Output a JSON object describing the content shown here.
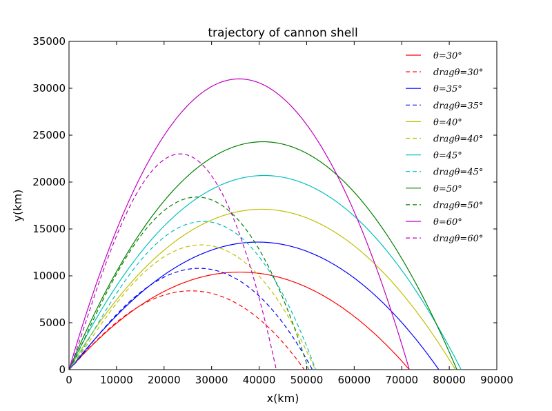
{
  "chart_data": {
    "type": "line",
    "title": "trajectory of cannon shell",
    "xlabel": "x(km)",
    "ylabel": "y(km)",
    "xlim": [
      0,
      90000
    ],
    "ylim": [
      0,
      35000
    ],
    "xticks": [
      "0",
      "10000",
      "20000",
      "30000",
      "40000",
      "50000",
      "60000",
      "70000",
      "80000",
      "90000"
    ],
    "yticks": [
      "0",
      "5000",
      "10000",
      "15000",
      "20000",
      "25000",
      "30000",
      "35000"
    ],
    "grid": false,
    "legend_placement": "top-right",
    "series": [
      {
        "name": "θ=30°",
        "color": "#ff0000",
        "style": "solid",
        "range": 71600,
        "peak_x": 36000,
        "peak_y": 10400
      },
      {
        "name": "dragθ=30°",
        "color": "#ff0000",
        "style": "dashed",
        "range": 49500,
        "peak_x": 26000,
        "peak_y": 8400
      },
      {
        "name": "θ=35°",
        "color": "#0000ff",
        "style": "solid",
        "range": 77800,
        "peak_x": 40000,
        "peak_y": 13600
      },
      {
        "name": "dragθ=35°",
        "color": "#0000ff",
        "style": "dashed",
        "range": 51200,
        "peak_x": 28000,
        "peak_y": 10800
      },
      {
        "name": "θ=40°",
        "color": "#bfbf00",
        "style": "solid",
        "range": 81300,
        "peak_x": 40500,
        "peak_y": 17100
      },
      {
        "name": "dragθ=40°",
        "color": "#bfbf00",
        "style": "dashed",
        "range": 51800,
        "peak_x": 28500,
        "peak_y": 13300
      },
      {
        "name": "θ=45°",
        "color": "#00bfbf",
        "style": "solid",
        "range": 82500,
        "peak_x": 41000,
        "peak_y": 20700
      },
      {
        "name": "dragθ=45°",
        "color": "#00bfbf",
        "style": "dashed",
        "range": 51900,
        "peak_x": 29000,
        "peak_y": 15800
      },
      {
        "name": "θ=50°",
        "color": "#008000",
        "style": "solid",
        "range": 81600,
        "peak_x": 40800,
        "peak_y": 24300
      },
      {
        "name": "dragθ=50°",
        "color": "#008000",
        "style": "dashed",
        "range": 50400,
        "peak_x": 27500,
        "peak_y": 18400
      },
      {
        "name": "θ=60°",
        "color": "#bf00bf",
        "style": "solid",
        "range": 71600,
        "peak_x": 35800,
        "peak_y": 31000
      },
      {
        "name": "dragθ=60°",
        "color": "#bf00bf",
        "style": "dashed",
        "range": 43600,
        "peak_x": 24000,
        "peak_y": 23000
      }
    ]
  }
}
